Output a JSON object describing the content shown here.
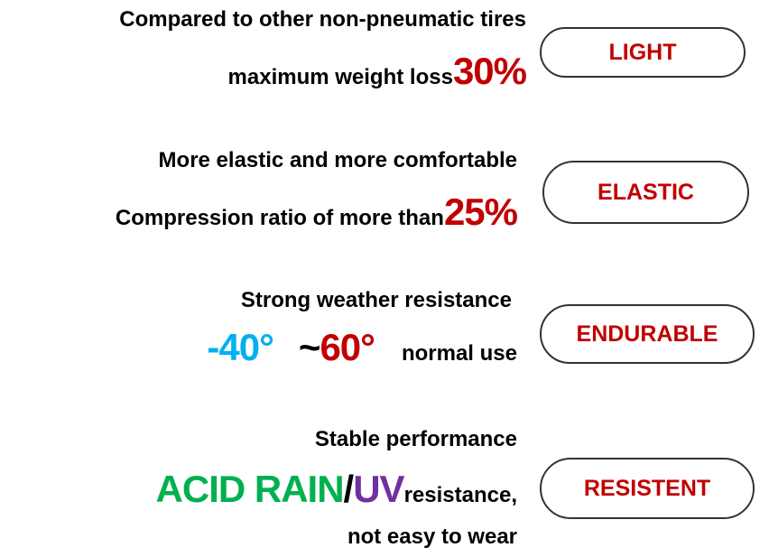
{
  "colors": {
    "red": "#c00000",
    "blue": "#00b0f0",
    "green": "#00b050",
    "purple": "#7030a0",
    "pill_border": "#333333"
  },
  "features": [
    {
      "line1": "Compared to other non-pneumatic tires",
      "line2_text": "maximum weight loss",
      "line2_value": "30%",
      "badge": "LIGHT"
    },
    {
      "line1": "More elastic and more comfortable",
      "line2_text": "Compression ratio of more than",
      "line2_value": "25%",
      "badge": "ELASTIC"
    },
    {
      "line1": "Strong weather resistance",
      "temp_low": "-40°",
      "temp_sep": "~",
      "temp_high": "60°",
      "line2_text": "normal use",
      "badge": "ENDURABLE"
    },
    {
      "line1": "Stable performance",
      "acid": "ACID RAIN",
      "slash": "/",
      "uv": "UV",
      "line2_text": "resistance,",
      "line3": "not easy to wear",
      "badge": "RESISTENT"
    }
  ]
}
